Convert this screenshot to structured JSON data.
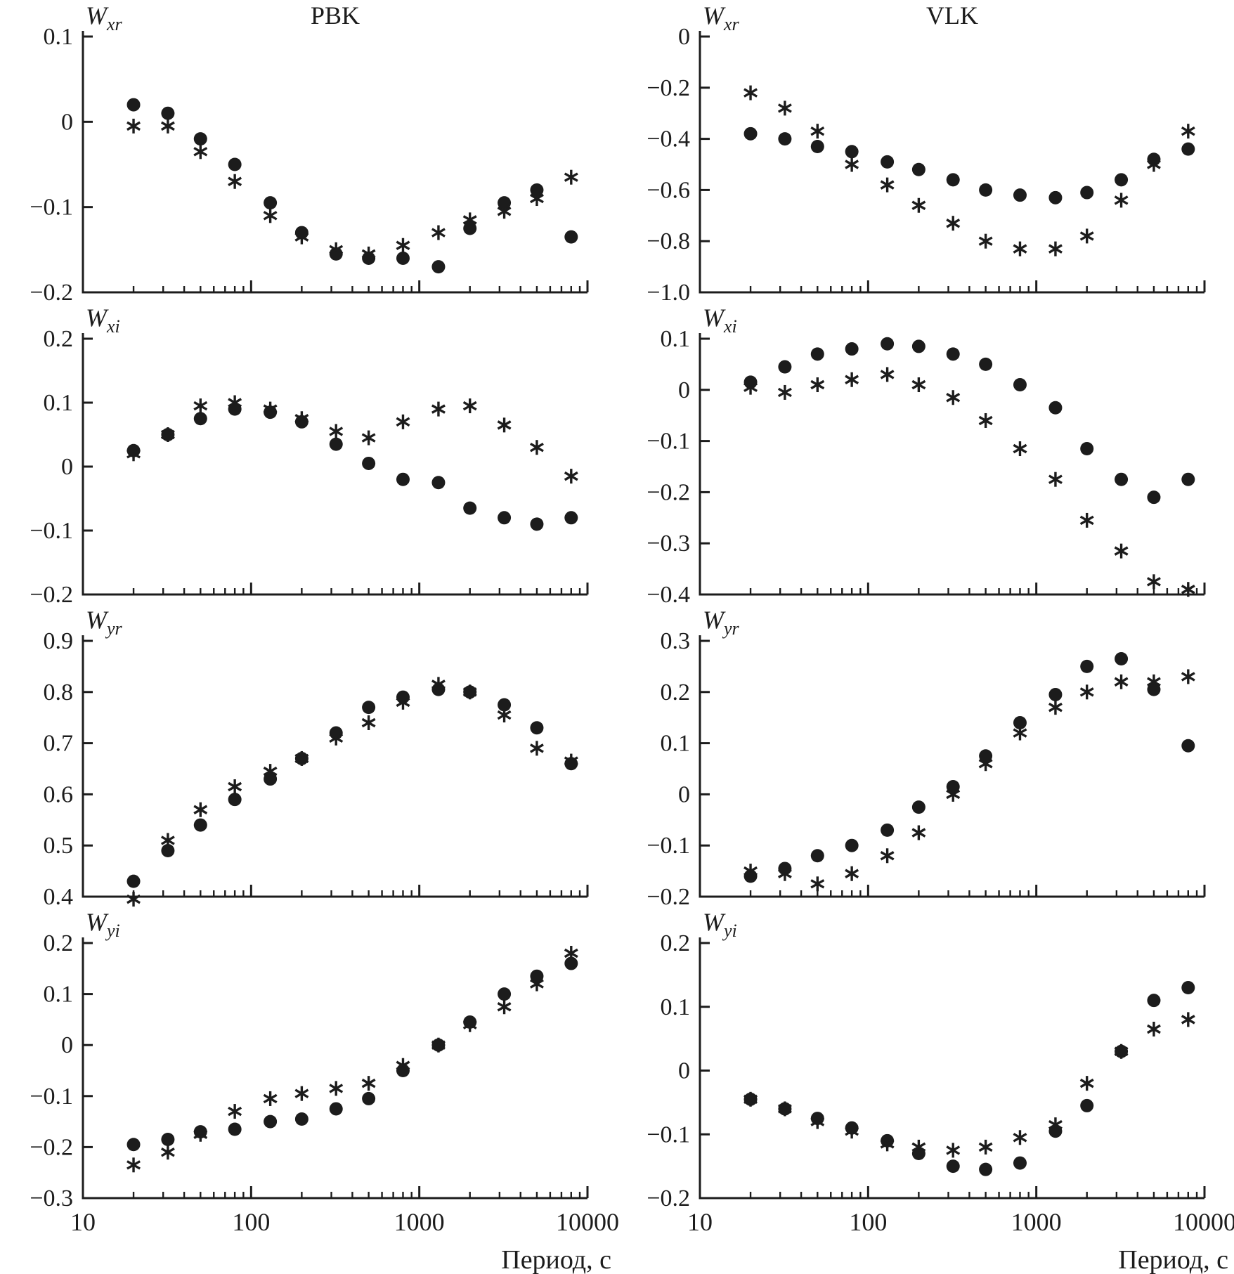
{
  "figure": {
    "xlabel": "Период, с",
    "x_axis_range": [
      10,
      10000
    ],
    "x_axis_scale": "log",
    "x_ticks": [
      10,
      100,
      1000,
      10000
    ],
    "x_tick_labels": [
      "10",
      "100",
      "1000",
      "10000"
    ],
    "color": "#1c1c1c",
    "background": "#ffffff",
    "legend": "none",
    "marker_legend": [
      {
        "series": "circles",
        "marker": "filled-circle"
      },
      {
        "series": "asterisks",
        "marker": "six-arm-asterisk"
      }
    ]
  },
  "x": [
    20,
    32,
    50,
    80,
    130,
    200,
    320,
    500,
    800,
    1300,
    2000,
    3200,
    5000,
    8000
  ],
  "chart_data": [
    {
      "type": "scatter",
      "title": "PBK",
      "ylabel": "W",
      "ylabel_sub": "xr",
      "ylim": [
        -0.2,
        0.1
      ],
      "ytick_vals": [
        0.1,
        0,
        -0.1,
        -0.2
      ],
      "ytick_labels": [
        "0.1",
        "0",
        "−0.1",
        "−0.2"
      ],
      "show_x_labels": false,
      "series": [
        {
          "name": "circles",
          "marker": "filled-circle",
          "values": [
            0.02,
            0.01,
            -0.02,
            -0.05,
            -0.095,
            -0.13,
            -0.155,
            -0.16,
            -0.16,
            -0.17,
            -0.125,
            -0.095,
            -0.08,
            -0.135
          ]
        },
        {
          "name": "asterisks",
          "marker": "six-arm-asterisk",
          "values": [
            -0.005,
            -0.005,
            -0.035,
            -0.07,
            -0.11,
            -0.135,
            -0.15,
            -0.155,
            -0.145,
            -0.13,
            -0.115,
            -0.105,
            -0.09,
            -0.065
          ]
        }
      ]
    },
    {
      "type": "scatter",
      "title": "VLK",
      "ylabel": "W",
      "ylabel_sub": "xr",
      "ylim": [
        -1.0,
        0
      ],
      "ytick_vals": [
        0,
        -0.2,
        -0.4,
        -0.6,
        -0.8,
        -1.0
      ],
      "ytick_labels": [
        "0",
        "−0.2",
        "−0.4",
        "−0.6",
        "−0.8",
        "−1.0"
      ],
      "show_x_labels": false,
      "series": [
        {
          "name": "circles",
          "marker": "filled-circle",
          "values": [
            -0.38,
            -0.4,
            -0.43,
            -0.45,
            -0.49,
            -0.52,
            -0.56,
            -0.6,
            -0.62,
            -0.63,
            -0.61,
            -0.56,
            -0.48,
            -0.44
          ]
        },
        {
          "name": "asterisks",
          "marker": "six-arm-asterisk",
          "values": [
            -0.22,
            -0.28,
            -0.37,
            -0.5,
            -0.58,
            -0.66,
            -0.73,
            -0.8,
            -0.83,
            -0.83,
            -0.78,
            -0.64,
            -0.5,
            -0.37
          ]
        }
      ]
    },
    {
      "type": "scatter",
      "title": "",
      "ylabel": "W",
      "ylabel_sub": "xi",
      "ylim": [
        -0.2,
        0.2
      ],
      "ytick_vals": [
        0.2,
        0.1,
        0,
        -0.1,
        -0.2
      ],
      "ytick_labels": [
        "0.2",
        "0.1",
        "0",
        "−0.1",
        "−0.2"
      ],
      "show_x_labels": false,
      "series": [
        {
          "name": "circles",
          "marker": "filled-circle",
          "values": [
            0.025,
            0.05,
            0.075,
            0.09,
            0.085,
            0.07,
            0.035,
            0.005,
            -0.02,
            -0.025,
            -0.065,
            -0.08,
            -0.09,
            -0.08
          ]
        },
        {
          "name": "asterisks",
          "marker": "six-arm-asterisk",
          "values": [
            0.02,
            0.05,
            0.095,
            0.1,
            0.09,
            0.075,
            0.055,
            0.045,
            0.07,
            0.09,
            0.095,
            0.065,
            0.03,
            -0.015
          ]
        }
      ]
    },
    {
      "type": "scatter",
      "title": "",
      "ylabel": "W",
      "ylabel_sub": "xi",
      "ylim": [
        -0.4,
        0.1
      ],
      "ytick_vals": [
        0.1,
        0,
        -0.1,
        -0.2,
        -0.3,
        -0.4
      ],
      "ytick_labels": [
        "0.1",
        "0",
        "−0.1",
        "−0.2",
        "−0.3",
        "−0.4"
      ],
      "show_x_labels": false,
      "series": [
        {
          "name": "circles",
          "marker": "filled-circle",
          "values": [
            0.015,
            0.045,
            0.07,
            0.08,
            0.09,
            0.085,
            0.07,
            0.05,
            0.01,
            -0.035,
            -0.115,
            -0.175,
            -0.21,
            -0.175
          ]
        },
        {
          "name": "asterisks",
          "marker": "six-arm-asterisk",
          "values": [
            0.005,
            -0.005,
            0.01,
            0.02,
            0.03,
            0.01,
            -0.015,
            -0.06,
            -0.115,
            -0.175,
            -0.255,
            -0.315,
            -0.375,
            -0.39
          ]
        }
      ]
    },
    {
      "type": "scatter",
      "title": "",
      "ylabel": "W",
      "ylabel_sub": "yr",
      "ylim": [
        0.4,
        0.9
      ],
      "ytick_vals": [
        0.9,
        0.8,
        0.7,
        0.6,
        0.5,
        0.4
      ],
      "ytick_labels": [
        "0.9",
        "0.8",
        "0.7",
        "0.6",
        "0.5",
        "0.4"
      ],
      "show_x_labels": false,
      "series": [
        {
          "name": "circles",
          "marker": "filled-circle",
          "values": [
            0.43,
            0.49,
            0.54,
            0.59,
            0.63,
            0.67,
            0.72,
            0.77,
            0.79,
            0.805,
            0.8,
            0.775,
            0.73,
            0.66
          ]
        },
        {
          "name": "asterisks",
          "marker": "six-arm-asterisk",
          "values": [
            0.395,
            0.51,
            0.57,
            0.615,
            0.645,
            0.67,
            0.71,
            0.74,
            0.78,
            0.815,
            0.8,
            0.755,
            0.69,
            0.665
          ]
        }
      ]
    },
    {
      "type": "scatter",
      "title": "",
      "ylabel": "W",
      "ylabel_sub": "yr",
      "ylim": [
        -0.2,
        0.3
      ],
      "ytick_vals": [
        0.3,
        0.2,
        0.1,
        0,
        -0.1,
        -0.2
      ],
      "ytick_labels": [
        "0.3",
        "0.2",
        "0.1",
        "0",
        "−0.1",
        "−0.2"
      ],
      "show_x_labels": false,
      "series": [
        {
          "name": "circles",
          "marker": "filled-circle",
          "values": [
            -0.16,
            -0.145,
            -0.12,
            -0.1,
            -0.07,
            -0.025,
            0.015,
            0.075,
            0.14,
            0.195,
            0.25,
            0.265,
            0.205,
            0.095
          ]
        },
        {
          "name": "asterisks",
          "marker": "six-arm-asterisk",
          "values": [
            -0.15,
            -0.155,
            -0.175,
            -0.155,
            -0.12,
            -0.075,
            0.0,
            0.06,
            0.12,
            0.17,
            0.2,
            0.22,
            0.22,
            0.23
          ]
        }
      ]
    },
    {
      "type": "scatter",
      "title": "",
      "ylabel": "W",
      "ylabel_sub": "yi",
      "ylim": [
        -0.3,
        0.2
      ],
      "ytick_vals": [
        0.2,
        0.1,
        0,
        -0.1,
        -0.2,
        -0.3
      ],
      "ytick_labels": [
        "0.2",
        "0.1",
        "0",
        "−0.1",
        "−0.2",
        "−0.3"
      ],
      "show_x_labels": true,
      "series": [
        {
          "name": "circles",
          "marker": "filled-circle",
          "values": [
            -0.195,
            -0.185,
            -0.17,
            -0.165,
            -0.15,
            -0.145,
            -0.125,
            -0.105,
            -0.05,
            0.0,
            0.045,
            0.1,
            0.135,
            0.16
          ]
        },
        {
          "name": "asterisks",
          "marker": "six-arm-asterisk",
          "values": [
            -0.235,
            -0.21,
            -0.175,
            -0.13,
            -0.105,
            -0.095,
            -0.085,
            -0.075,
            -0.04,
            0.0,
            0.04,
            0.075,
            0.12,
            0.18
          ]
        }
      ]
    },
    {
      "type": "scatter",
      "title": "",
      "ylabel": "W",
      "ylabel_sub": "yi",
      "ylim": [
        -0.2,
        0.2
      ],
      "ytick_vals": [
        0.2,
        0.1,
        0,
        -0.1,
        -0.2
      ],
      "ytick_labels": [
        "0.2",
        "0.1",
        "0",
        "−0.1",
        "−0.2"
      ],
      "show_x_labels": true,
      "series": [
        {
          "name": "circles",
          "marker": "filled-circle",
          "values": [
            -0.045,
            -0.06,
            -0.075,
            -0.09,
            -0.11,
            -0.13,
            -0.15,
            -0.155,
            -0.145,
            -0.095,
            -0.055,
            0.03,
            0.11,
            0.13
          ]
        },
        {
          "name": "asterisks",
          "marker": "six-arm-asterisk",
          "values": [
            -0.045,
            -0.06,
            -0.08,
            -0.095,
            -0.115,
            -0.12,
            -0.125,
            -0.12,
            -0.105,
            -0.085,
            -0.02,
            0.03,
            0.065,
            0.08
          ]
        }
      ]
    }
  ]
}
